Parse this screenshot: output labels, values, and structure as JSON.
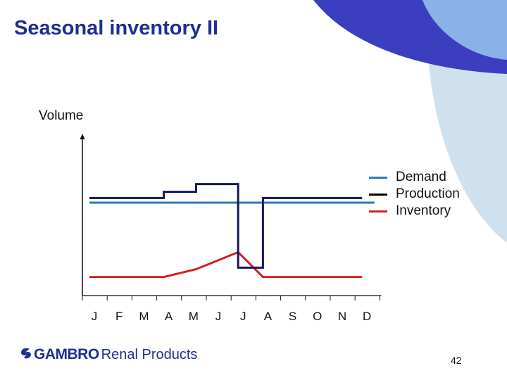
{
  "slide": {
    "title": "Seasonal inventory II",
    "page_number": "42",
    "logo_word": "GAMBRO",
    "logo_rest": "Renal Products"
  },
  "colors": {
    "title": "#1f2f8f",
    "demand": "#2a7ab8",
    "production": "#14185a",
    "inventory": "#d42020",
    "deco_dark": "#3b3fbf",
    "deco_mid": "#8ab2e8",
    "deco_light": "#cfe1ee"
  },
  "chart_data": {
    "type": "line",
    "ylabel": "Volume",
    "xlabel": "",
    "categories": [
      "J",
      "F",
      "M",
      "A",
      "M",
      "J",
      "J",
      "A",
      "S",
      "O",
      "N",
      "D"
    ],
    "y_ticks": false,
    "grid": false,
    "legend_position": "right",
    "ylim": [
      0,
      100
    ],
    "series": [
      {
        "name": "Demand",
        "color": "#2a7ab8",
        "x": [
          0,
          11.5
        ],
        "y": [
          60,
          60
        ]
      },
      {
        "name": "Production",
        "color": "#14185a",
        "step": true,
        "x": [
          0,
          3,
          3,
          4.3,
          4.3,
          6,
          6,
          7,
          7,
          11
        ],
        "y": [
          63,
          63,
          67,
          67,
          72,
          72,
          18,
          18,
          63,
          63
        ]
      },
      {
        "name": "Inventory",
        "color": "#d42020",
        "x": [
          0,
          3,
          4.3,
          6,
          7,
          11
        ],
        "y": [
          12,
          12,
          17,
          28,
          12,
          12
        ]
      }
    ]
  }
}
